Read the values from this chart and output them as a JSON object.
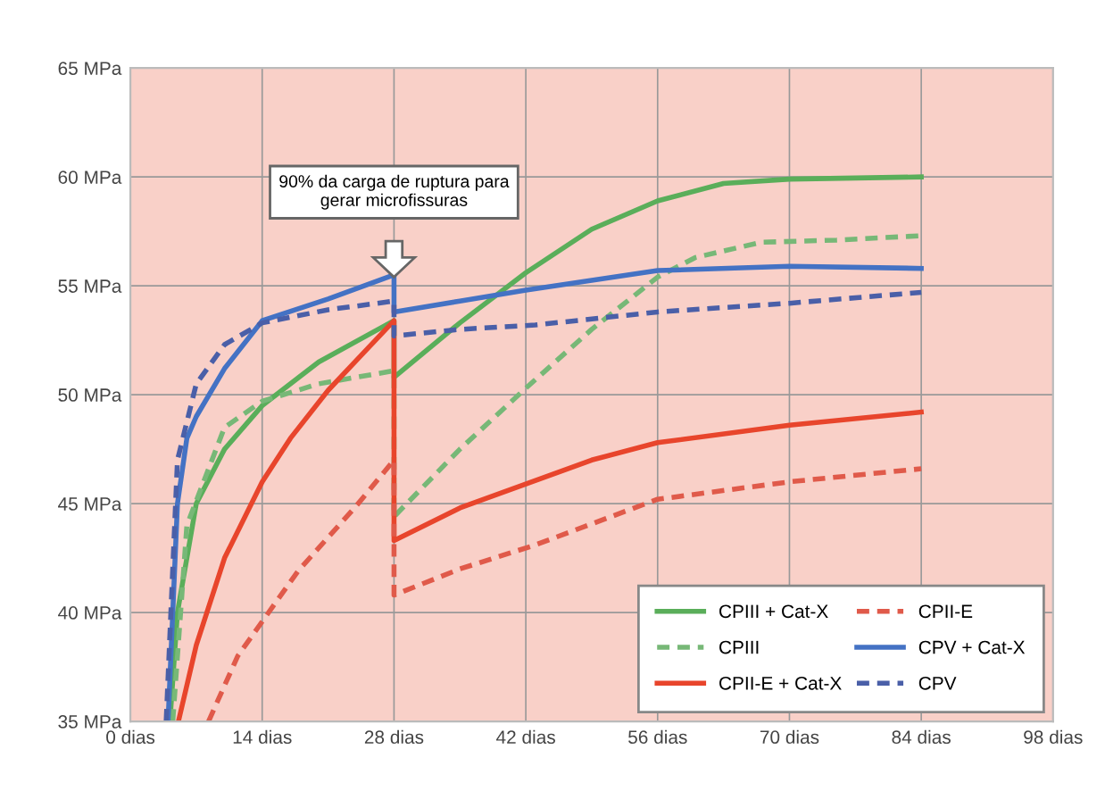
{
  "chart_data": {
    "type": "line",
    "xlim": [
      0,
      98
    ],
    "ylim": [
      35,
      65
    ],
    "xticks": [
      {
        "value": 0,
        "label": "0 dias"
      },
      {
        "value": 14,
        "label": "14 dias"
      },
      {
        "value": 28,
        "label": "28 dias"
      },
      {
        "value": 42,
        "label": "42 dias"
      },
      {
        "value": 56,
        "label": "56 dias"
      },
      {
        "value": 70,
        "label": "70 dias"
      },
      {
        "value": 84,
        "label": "84 dias"
      },
      {
        "value": 98,
        "label": "98 dias"
      }
    ],
    "yticks": [
      {
        "value": 35,
        "label": "35 MPa"
      },
      {
        "value": 40,
        "label": "40 MPa"
      },
      {
        "value": 45,
        "label": "45 MPa"
      },
      {
        "value": 50,
        "label": "50 MPa"
      },
      {
        "value": 55,
        "label": "55 MPa"
      },
      {
        "value": 60,
        "label": "60 MPa"
      },
      {
        "value": 65,
        "label": "65 MPa"
      }
    ],
    "grid": true,
    "legend": "bottom right",
    "marker": "none",
    "annotations": [
      "90% da carga de ruptura para gerar microfissuras"
    ],
    "series": [
      {
        "name": "CPIII + Cat-X",
        "color": "#5aae5a",
        "line_style": "solid",
        "x": [
          4.2,
          5,
          7,
          10,
          14,
          20,
          28,
          28,
          35,
          42,
          49,
          56,
          63,
          70,
          84
        ],
        "values": [
          35,
          40,
          45,
          47.5,
          49.5,
          51.5,
          53.4,
          50.8,
          53.3,
          55.6,
          57.6,
          58.9,
          59.7,
          59.9,
          60
        ]
      },
      {
        "name": "CPIII",
        "color": "#77b877",
        "line_style": "dashed",
        "x": [
          4.5,
          6,
          10,
          14,
          20,
          28,
          28,
          35,
          42,
          49,
          56,
          60,
          67,
          75,
          84
        ],
        "values": [
          35,
          44,
          48.5,
          49.7,
          50.5,
          51.1,
          44.4,
          47.5,
          50.3,
          53,
          55.4,
          56.3,
          57,
          57.1,
          57.3
        ]
      },
      {
        "name": "CPII-E + Cat-X",
        "color": "#e8452c",
        "line_style": "solid",
        "x": [
          5.1,
          7,
          10,
          14,
          17,
          21,
          24.5,
          28,
          28,
          35,
          42,
          49,
          56,
          70,
          84
        ],
        "values": [
          35,
          38.5,
          42.5,
          46,
          48,
          50.2,
          51.8,
          53.4,
          43.3,
          44.8,
          45.9,
          47,
          47.8,
          48.6,
          49.2
        ]
      },
      {
        "name": "CPII-E",
        "color": "#e05a4a",
        "line_style": "dashed",
        "x": [
          8.3,
          11.4,
          17.8,
          24,
          28,
          28,
          35,
          43,
          56,
          70,
          84
        ],
        "values": [
          35,
          38,
          41.9,
          44.9,
          47,
          40.8,
          42,
          43.1,
          45.2,
          46,
          46.6
        ]
      },
      {
        "name": "CPV + Cat-X",
        "color": "#4472c4",
        "line_style": "solid",
        "x": [
          4,
          5,
          6,
          7,
          10,
          14,
          21,
          28,
          28,
          35,
          42,
          56,
          70,
          84
        ],
        "values": [
          35,
          45,
          48,
          49,
          51.2,
          53.4,
          54.4,
          55.5,
          53.8,
          54.3,
          54.8,
          55.7,
          55.9,
          55.8
        ]
      },
      {
        "name": "CPV",
        "color": "#4a5fa8",
        "line_style": "dashed",
        "x": [
          3.8,
          5,
          7,
          10,
          14,
          21,
          28,
          28,
          35,
          43,
          56,
          70,
          84
        ],
        "values": [
          35,
          47,
          50.5,
          52.3,
          53.3,
          53.9,
          54.3,
          52.7,
          53,
          53.2,
          53.8,
          54.2,
          54.7
        ]
      }
    ]
  }
}
